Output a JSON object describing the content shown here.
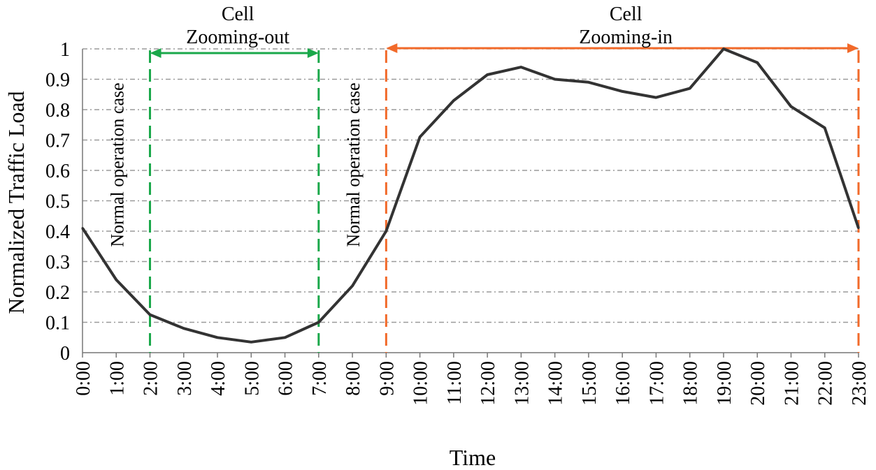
{
  "chart_data": {
    "type": "line",
    "xlabel": "Time",
    "ylabel": "Normalized Traffic Load",
    "ylim": [
      0,
      1
    ],
    "yticks": [
      "0",
      "0.1",
      "0.2",
      "0.3",
      "0.4",
      "0.5",
      "0.6",
      "0.7",
      "0.8",
      "0.9",
      "1"
    ],
    "categories": [
      "0:00",
      "1:00",
      "2:00",
      "3:00",
      "4:00",
      "5:00",
      "6:00",
      "7:00",
      "8:00",
      "9:00",
      "10:00",
      "11:00",
      "12:00",
      "13:00",
      "14:00",
      "15:00",
      "16:00",
      "17:00",
      "18:00",
      "19:00",
      "20:00",
      "21:00",
      "22:00",
      "23:00"
    ],
    "series": [
      {
        "name": "Normalized Traffic Load",
        "color": "#333333",
        "values": [
          0.41,
          0.24,
          0.125,
          0.08,
          0.05,
          0.035,
          0.05,
          0.1,
          0.22,
          0.4,
          0.71,
          0.83,
          0.915,
          0.94,
          0.9,
          0.89,
          0.86,
          0.84,
          0.87,
          1.0,
          0.955,
          0.81,
          0.74,
          0.41
        ]
      }
    ],
    "grid": true,
    "regions": [
      {
        "name": "zoom-out",
        "label_line1": "Cell",
        "label_line2": "Zooming-out",
        "start": "2:00",
        "end": "7:00",
        "color": "#1aa84a"
      },
      {
        "name": "zoom-in",
        "label_line1": "Cell",
        "label_line2": "Zooming-in",
        "start": "9:00",
        "end": "23:00",
        "color": "#f26a2a"
      }
    ],
    "annotations": [
      {
        "name": "normal-case-1",
        "text": "Normal operation case",
        "at": "1:00"
      },
      {
        "name": "normal-case-2",
        "text": "Normal operation case",
        "at": "8:00"
      }
    ]
  }
}
